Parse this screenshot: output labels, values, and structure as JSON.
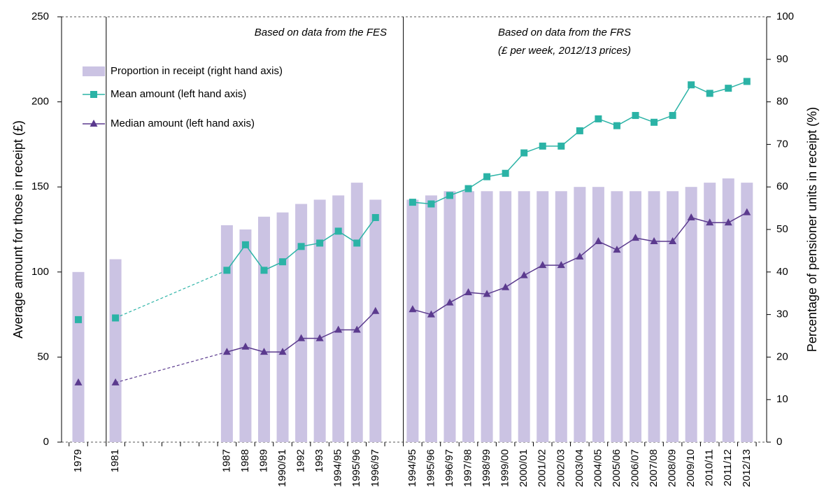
{
  "chart_data": {
    "type": "combo",
    "y_axis_label": "Average amount for those in receipt (£)",
    "y2_axis_label": "Percentage of pensioner units in receipt (%)",
    "annotations": [
      "Based on data from the FES",
      "Based on data from the FRS",
      "(£ per week, 2012/13 prices)"
    ],
    "categories": [
      "1979",
      null,
      "1981",
      null,
      null,
      null,
      null,
      null,
      "1987",
      "1988",
      "1989",
      "1990/91",
      "1992",
      "1993",
      "1994/95",
      "1995/96",
      "1996/97",
      null,
      "1994/95",
      "1995/96",
      "1996/97",
      "1997/98",
      "1998/99",
      "1999/00",
      "2000/01",
      "2001/02",
      "2002/03",
      "2003/04",
      "2004/05",
      "2005/06",
      "2006/07",
      "2007/08",
      "2008/09",
      "2009/10",
      "2010/11",
      "2011/12",
      "2012/13"
    ],
    "series": [
      {
        "name": "Proportion in receipt (right hand axis)",
        "type": "bar",
        "axis": "y2",
        "color": "#cbc3e3",
        "values": [
          40,
          null,
          43,
          null,
          null,
          null,
          null,
          null,
          51,
          50,
          53,
          54,
          56,
          57,
          58,
          61,
          57,
          null,
          57,
          58,
          59,
          59,
          59,
          59,
          59,
          59,
          59,
          60,
          60,
          59,
          59,
          59,
          59,
          60,
          61,
          62,
          61
        ]
      },
      {
        "name": "Mean amount (left hand axis)",
        "type": "line",
        "marker": "square",
        "color": "#2bb3a6",
        "values": [
          72,
          null,
          73,
          null,
          null,
          null,
          null,
          null,
          101,
          116,
          101,
          106,
          115,
          117,
          124,
          117,
          132,
          null,
          141,
          140,
          145,
          149,
          156,
          158,
          170,
          174,
          174,
          183,
          190,
          186,
          192,
          188,
          192,
          210,
          205,
          208,
          212
        ]
      },
      {
        "name": "Median amount (left hand axis)",
        "type": "line",
        "marker": "triangle",
        "color": "#5b3a8e",
        "values": [
          35,
          null,
          35,
          null,
          null,
          null,
          null,
          null,
          53,
          56,
          53,
          53,
          61,
          61,
          66,
          66,
          77,
          null,
          78,
          75,
          82,
          88,
          87,
          91,
          98,
          104,
          104,
          109,
          118,
          113,
          120,
          118,
          118,
          132,
          129,
          129,
          135
        ]
      }
    ],
    "ylim": [
      0,
      250
    ],
    "yticks": [
      0,
      50,
      100,
      150,
      200,
      250
    ],
    "y2lim": [
      0,
      100
    ],
    "y2ticks": [
      0,
      10,
      20,
      30,
      40,
      50,
      60,
      70,
      80,
      90,
      100
    ],
    "legend": "top-left"
  }
}
